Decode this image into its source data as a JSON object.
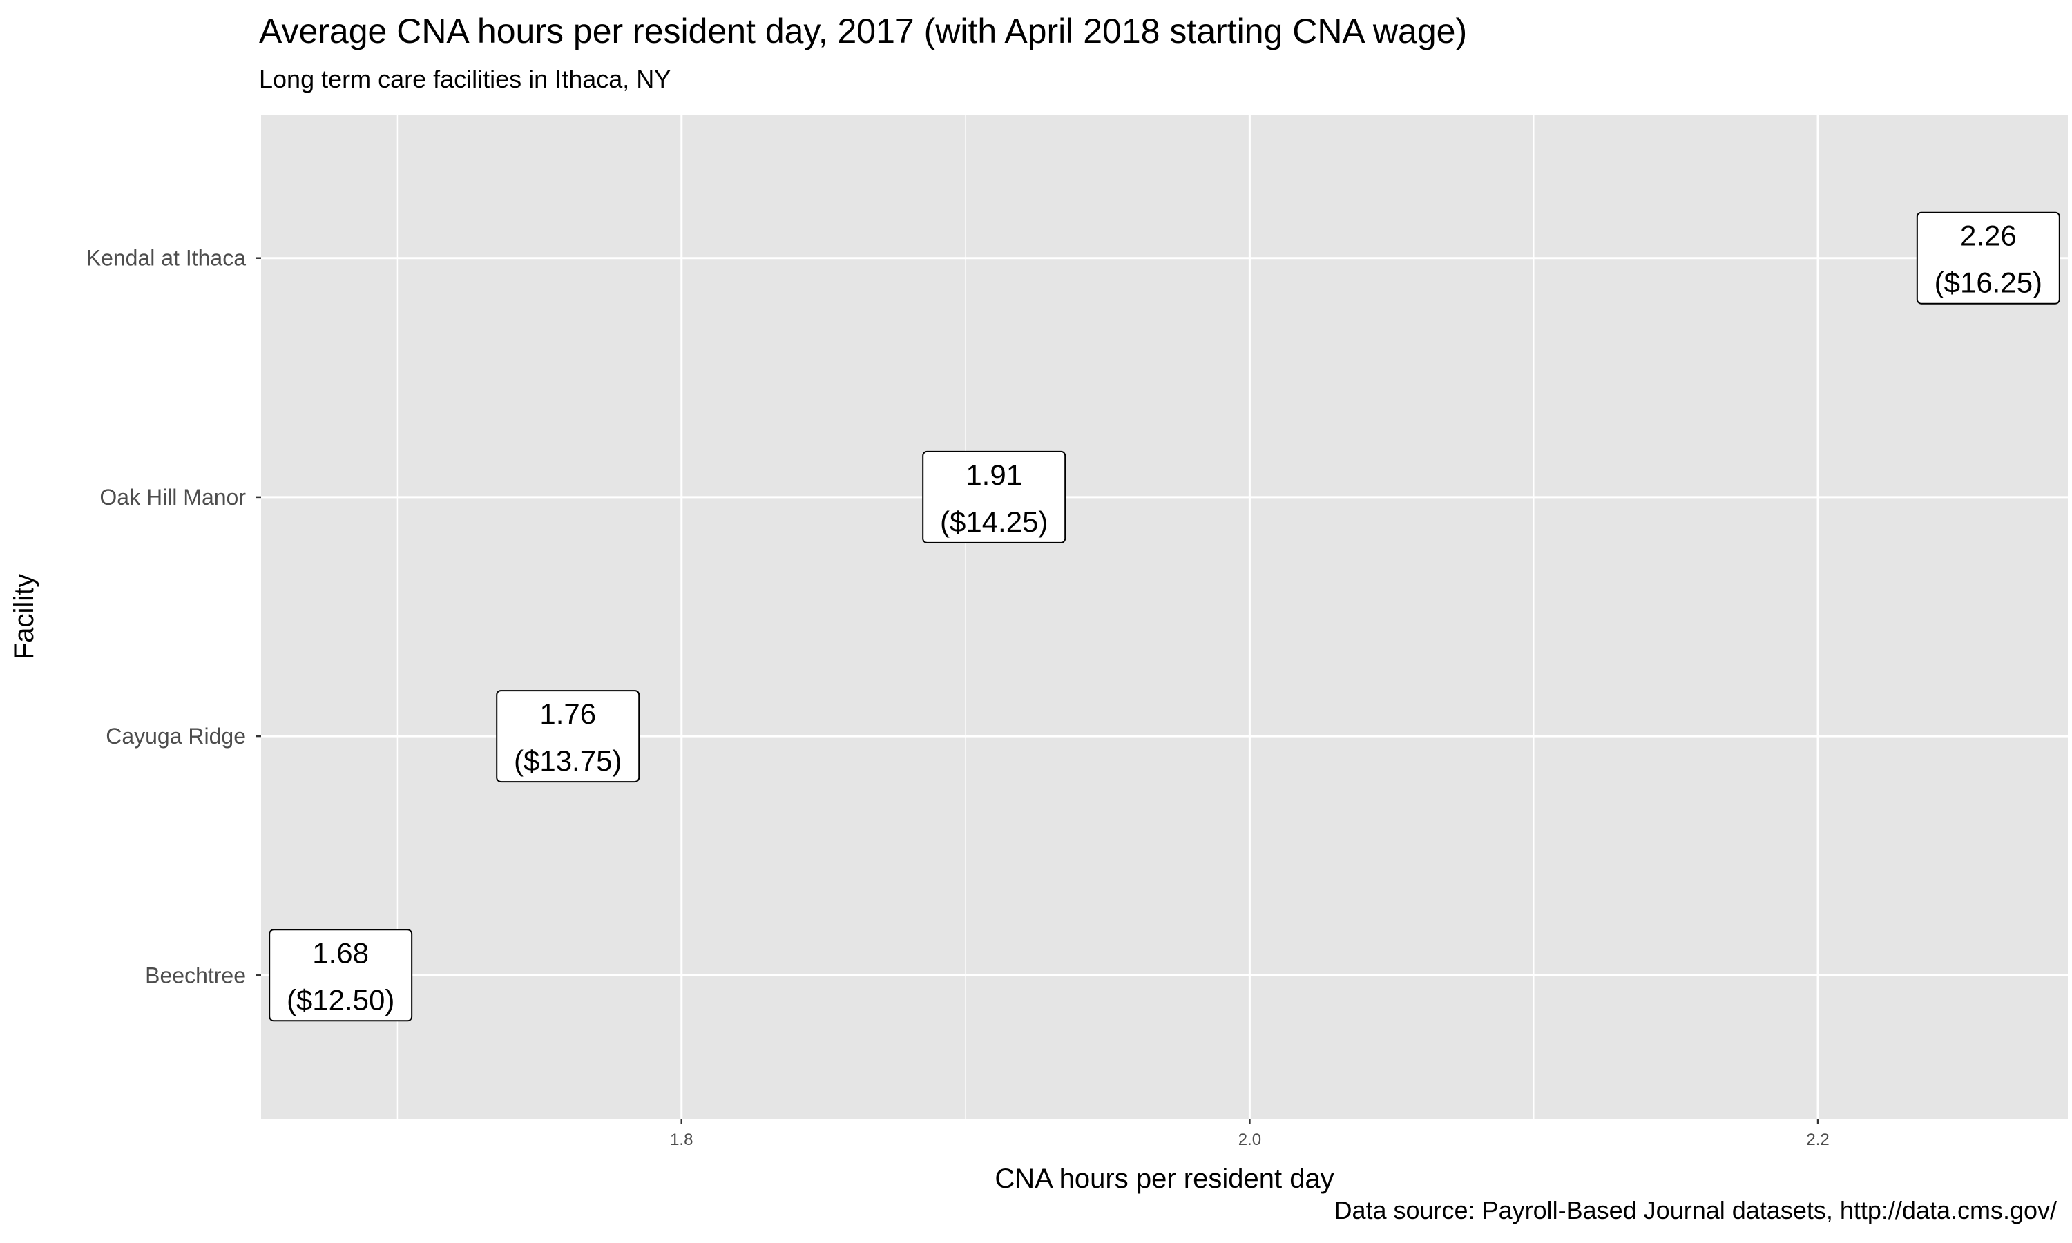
{
  "chart_data": {
    "type": "scatter",
    "title": "Average CNA hours per resident day, 2017 (with April 2018 starting CNA wage)",
    "subtitle": "Long term care facilities in Ithaca, NY",
    "caption": "Data source: Payroll-Based Journal datasets, http://data.cms.gov/",
    "xlabel": "CNA hours per resident day",
    "ylabel": "Facility",
    "xlim": [
      1.652,
      2.288
    ],
    "x_major_ticks": [
      1.8,
      2.0,
      2.2
    ],
    "x_tick_labels": [
      "1.8",
      "2.0",
      "2.2"
    ],
    "x_minor_ticks": [
      1.7,
      1.9,
      2.1
    ],
    "categories": [
      "Beechtree",
      "Cayuga Ridge",
      "Oak Hill Manor",
      "Kendal at Ithaca"
    ],
    "points": [
      {
        "facility": "Beechtree",
        "x": 1.68,
        "value_label": "1.68",
        "wage_label": "($12.50)"
      },
      {
        "facility": "Cayuga Ridge",
        "x": 1.76,
        "value_label": "1.76",
        "wage_label": "($13.75)"
      },
      {
        "facility": "Oak Hill Manor",
        "x": 1.91,
        "value_label": "1.91",
        "wage_label": "($14.25)"
      },
      {
        "facility": "Kendal at Ithaca",
        "x": 2.26,
        "value_label": "2.26",
        "wage_label": "($16.25)"
      }
    ],
    "grid": true,
    "legend": "none",
    "colors": {
      "panel": "#e5e5e5",
      "grid": "#ffffff",
      "label_fill": "#ffffff",
      "label_border": "#000000",
      "tick_text": "#4d4d4d"
    }
  }
}
